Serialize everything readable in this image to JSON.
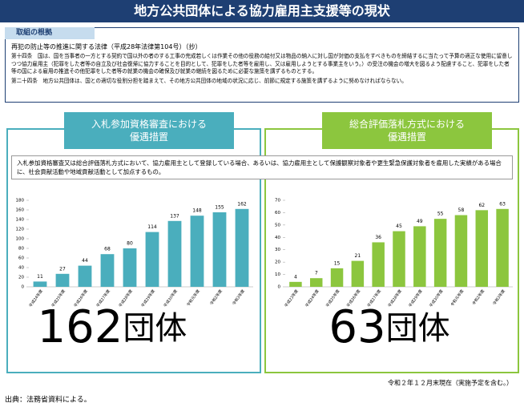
{
  "title": "地方公共団体による協力雇用主支援等の現状",
  "basis": {
    "label": "取組の根拠",
    "law": "再犯の防止等の推進に関する法律（平成28年法律第104号）（抄）",
    "paragraphs": [
      "第十四条　国は、国を当事者の一方とする契約で国以外の者のする工事の完成若しくは作業その他の役務の給付又は物品の納入に対し国が対価の支払をすべきものを締結するに当たって予算の適正な使用に留意しつつ協力雇用主（犯罪をした者等の自立及び社会復帰に協力することを目的として、犯罪をした者等を雇用し、又は雇用しようとする事業主をいう。）の受注の機会の増大を図るよう配慮すること、犯罪をした者等の国による雇用の推進その他犯罪をした者等の就業の機会の確保及び就業の継続を図るために必要な施策を講ずるものとする。",
      "第二十四条　地方公共団体は、国との適切な役割分担を踏まえて、その地方公共団体の地域の状況に応じ、前節に規定する施策を講ずるように努めなければならない。"
    ]
  },
  "note": "入札参加資格審査又は総合評価落札方式において、協力雇用主として登録している場合、あるいは、協力雇用主として保護観察対象者や更生緊急保護対象者を雇用した実績がある場合に、社会貢献活動や地域貢献活動として加点するもの。",
  "chart_data": [
    {
      "type": "bar",
      "title": [
        "入札参加資格審査における",
        "優遇措置"
      ],
      "color": "#4aaebd",
      "categories": [
        "平成24年度",
        "平成25年度",
        "平成26年度",
        "平成27年度",
        "平成28年度",
        "平成29年度",
        "平成30年度",
        "令和元年度",
        "令和2年度",
        "令和3年度"
      ],
      "values": [
        11,
        27,
        44,
        68,
        80,
        114,
        137,
        148,
        155,
        162
      ],
      "ylim": [
        0,
        180
      ],
      "yticks": [
        0,
        20,
        40,
        60,
        80,
        100,
        120,
        140,
        160,
        180
      ],
      "grid": false
    },
    {
      "type": "bar",
      "title": [
        "総合評価落札方式における",
        "優遇措置"
      ],
      "color": "#8cc63e",
      "categories": [
        "平成23年度",
        "平成24年度",
        "平成25年度",
        "平成26年度",
        "平成27年度",
        "平成28年度",
        "平成29年度",
        "平成30年度",
        "令和元年度",
        "令和2年度",
        "令和3年度"
      ],
      "values": [
        4,
        7,
        15,
        21,
        36,
        45,
        49,
        55,
        58,
        62,
        63
      ],
      "ylim": [
        0,
        70
      ],
      "yticks": [
        0,
        10,
        20,
        30,
        40,
        50,
        60,
        70
      ],
      "grid": false
    }
  ],
  "totals": [
    {
      "count": "162",
      "unit": "団体"
    },
    {
      "count": "63",
      "unit": "団体"
    }
  ],
  "as_of": "令和２年１２月末現在（実施予定を含む。）",
  "source": "出典：法務省資料による。"
}
